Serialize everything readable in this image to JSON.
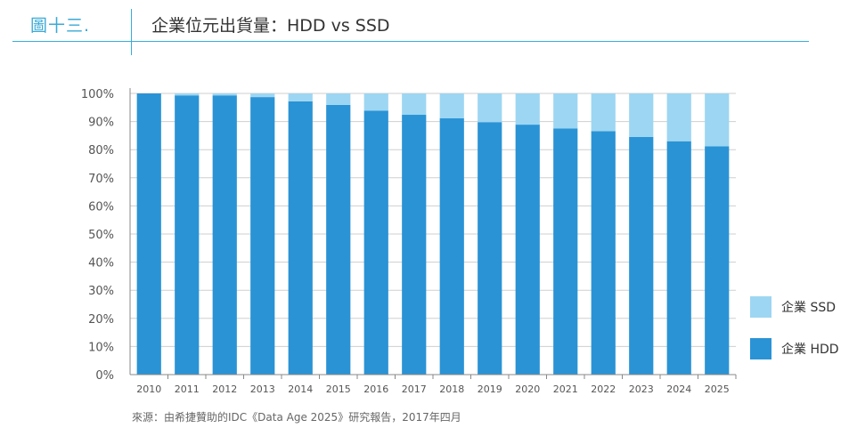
{
  "header": {
    "figure_label": "圖十三.",
    "title": "企業位元出貨量：HDD vs SSD"
  },
  "source_note": "來源：由希捷贊助的IDC《Data Age 2025》研究報告，2017年四月",
  "colors": {
    "accent": "#3aaad6",
    "hdd": "#2a93d5",
    "ssd": "#9dd6f2",
    "grid": "#cfcfcf",
    "axis": "#888888"
  },
  "chart_data": {
    "type": "bar",
    "stacked": true,
    "categories": [
      "2010",
      "2011",
      "2012",
      "2013",
      "2014",
      "2015",
      "2016",
      "2017",
      "2018",
      "2019",
      "2020",
      "2021",
      "2022",
      "2023",
      "2024",
      "2025"
    ],
    "series": [
      {
        "name": "企業 HDD",
        "values": [
          100,
          99.3,
          99.3,
          98.7,
          97.2,
          95.9,
          93.9,
          92.4,
          91.2,
          89.8,
          88.9,
          87.5,
          86.6,
          84.5,
          83.0,
          81.2
        ]
      },
      {
        "name": "企業 SSD",
        "values": [
          0,
          0.7,
          0.7,
          1.3,
          2.8,
          4.1,
          6.1,
          7.6,
          8.8,
          10.2,
          11.1,
          12.5,
          13.4,
          15.5,
          17.0,
          18.8
        ]
      }
    ],
    "yticks": [
      "0%",
      "10%",
      "20%",
      "30%",
      "40%",
      "50%",
      "60%",
      "70%",
      "80%",
      "90%",
      "100%"
    ],
    "ylim": [
      0,
      100
    ],
    "grid": true,
    "legend_position": "right"
  }
}
